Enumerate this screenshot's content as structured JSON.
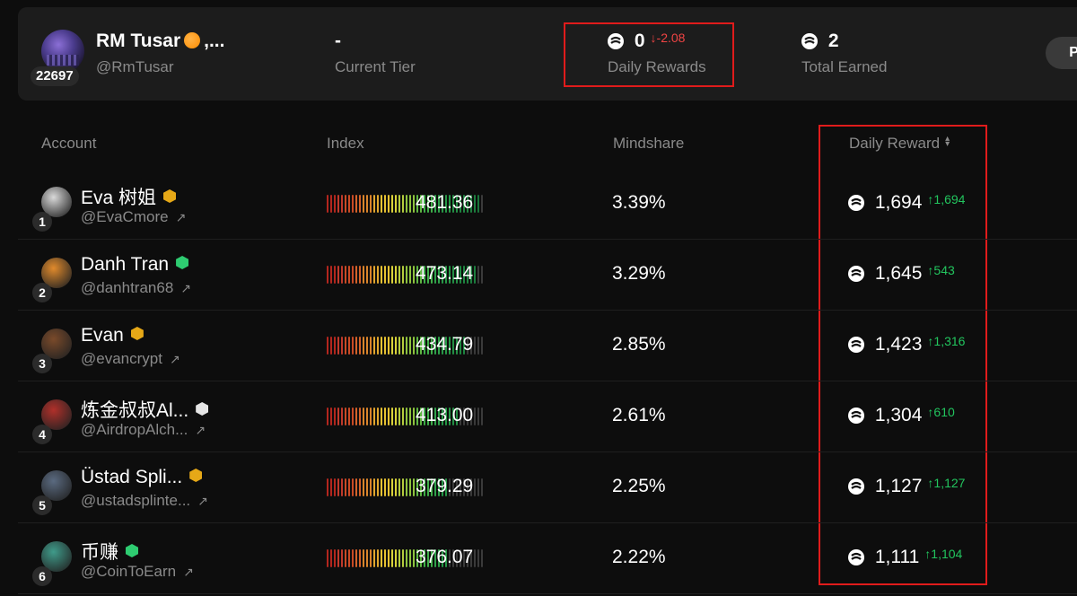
{
  "user": {
    "name": "RM Tusar",
    "name_suffix": ",...",
    "handle": "@RmTusar",
    "score": "22697"
  },
  "stats": {
    "tier": {
      "value": "-",
      "label": "Current Tier"
    },
    "daily_rewards": {
      "value": "0",
      "change": "-2.08",
      "label": "Daily Rewards"
    },
    "total_earned": {
      "value": "2",
      "label": "Total Earned"
    }
  },
  "pill_label": "Po",
  "columns": {
    "account": "Account",
    "index": "Index",
    "mindshare": "Mindshare",
    "daily_reward": "Daily Reward"
  },
  "rows": [
    {
      "rank": "1",
      "name": "Eva 树姐",
      "handle": "@EvaCmore",
      "index": "481.36",
      "index_level": 0.96,
      "mindshare": "3.39%",
      "reward": "1,694",
      "reward_change": "1,694",
      "badge": "gold",
      "avatar_color": "#d9d9d9"
    },
    {
      "rank": "2",
      "name": "Danh Tran",
      "handle": "@danhtran68",
      "index": "473.14",
      "index_level": 0.95,
      "mindshare": "3.29%",
      "reward": "1,645",
      "reward_change": "543",
      "badge": "green",
      "avatar_color": "#e08a2c"
    },
    {
      "rank": "3",
      "name": "Evan",
      "handle": "@evancrypt",
      "index": "434.79",
      "index_level": 0.87,
      "mindshare": "2.85%",
      "reward": "1,423",
      "reward_change": "1,316",
      "badge": "gold",
      "avatar_color": "#7a4a2a"
    },
    {
      "rank": "4",
      "name": "炼金叔叔Al...",
      "handle": "@AirdropAlch...",
      "index": "413.00",
      "index_level": 0.83,
      "mindshare": "2.61%",
      "reward": "1,304",
      "reward_change": "610",
      "badge": "white",
      "avatar_color": "#b0302a"
    },
    {
      "rank": "5",
      "name": "Üstad Spli...",
      "handle": "@ustadsplinte...",
      "index": "379.29",
      "index_level": 0.76,
      "mindshare": "2.25%",
      "reward": "1,127",
      "reward_change": "1,127",
      "badge": "gold",
      "avatar_color": "#5a6a80"
    },
    {
      "rank": "6",
      "name": "币赚",
      "handle": "@CoinToEarn",
      "index": "376.07",
      "index_level": 0.75,
      "mindshare": "2.22%",
      "reward": "1,111",
      "reward_change": "1,104",
      "badge": "green",
      "avatar_color": "#3f9b8a"
    }
  ],
  "colors": {
    "highlight": "#e01b1b",
    "positive": "#22c55e",
    "negative": "#ef4444"
  }
}
